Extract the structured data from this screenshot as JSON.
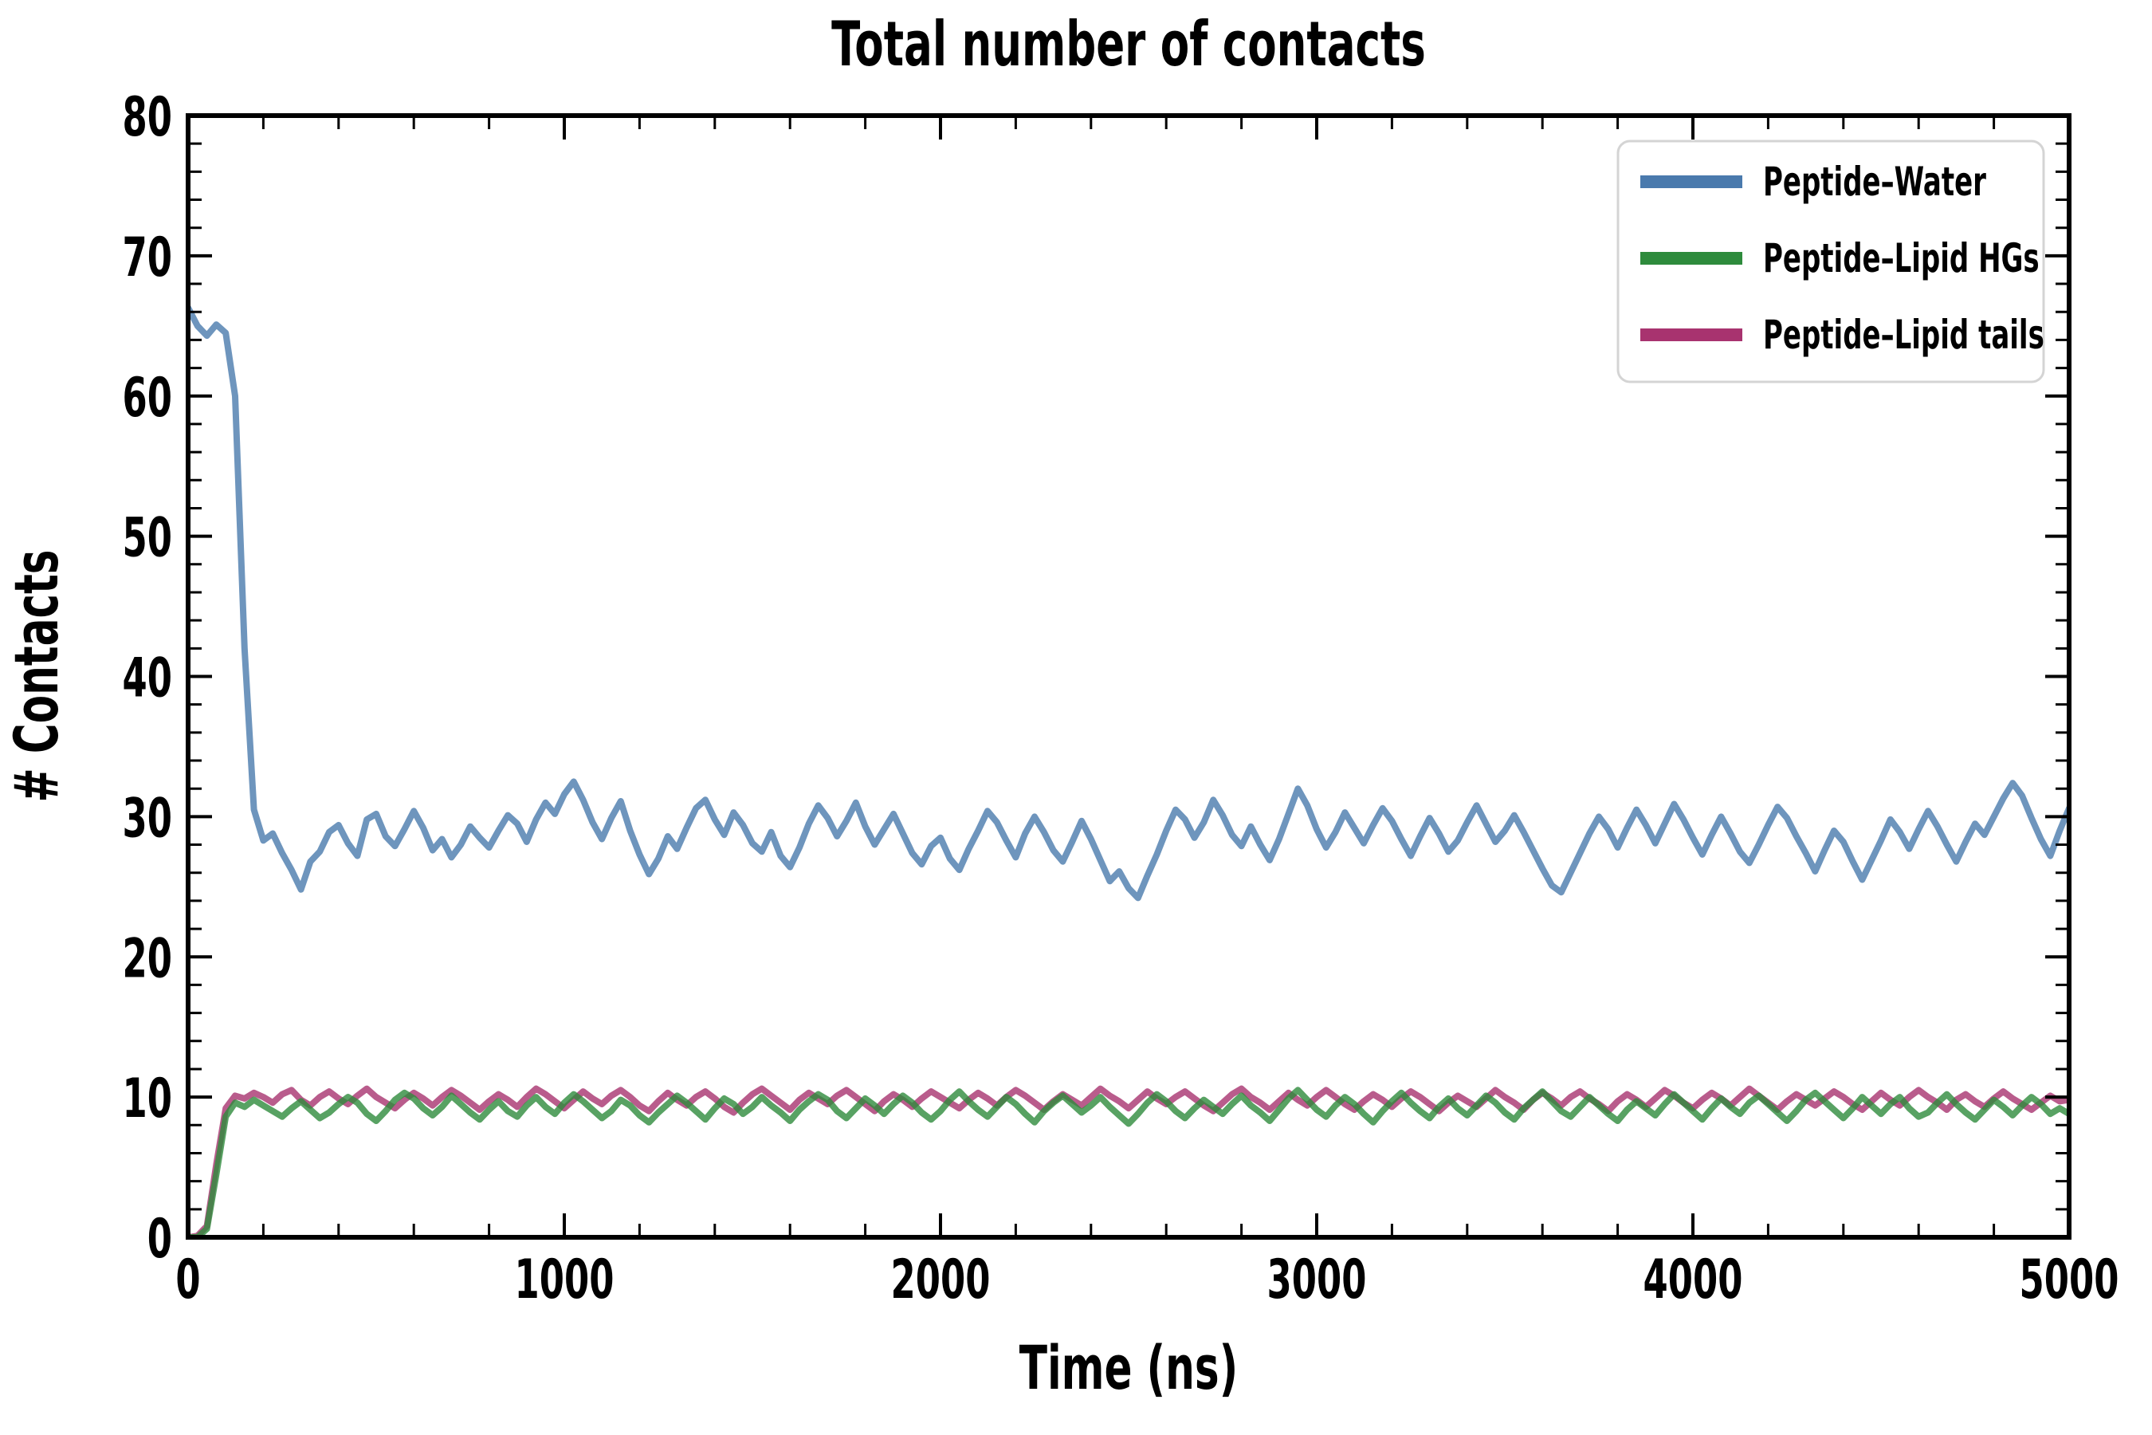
{
  "title": "Total number of contacts",
  "chart_data": {
    "type": "line",
    "title": "Total number of contacts",
    "xlabel": "Time (ns)",
    "ylabel": "# Contacts",
    "xlim": [
      0,
      5000
    ],
    "ylim": [
      0,
      80
    ],
    "xticks_major": [
      0,
      1000,
      2000,
      3000,
      4000,
      5000
    ],
    "yticks_major": [
      0,
      10,
      20,
      30,
      40,
      50,
      60,
      70,
      80
    ],
    "x_minor_step": 200,
    "y_minor_step": 2,
    "grid": false,
    "tick_direction": "in",
    "legend_position": "top-right",
    "line_width": 8,
    "line_opacity": 0.8,
    "x_step_ns": 25,
    "series": [
      {
        "name": "Peptide–Water",
        "color": "#4a7aad",
        "values": [
          66.3,
          65.0,
          64.3,
          65.1,
          64.5,
          60.0,
          42.0,
          30.5,
          28.3,
          28.8,
          27.4,
          26.2,
          24.8,
          26.8,
          27.5,
          28.9,
          29.4,
          28.1,
          27.2,
          29.8,
          30.2,
          28.6,
          27.9,
          29.1,
          30.4,
          29.2,
          27.6,
          28.4,
          27.1,
          28.0,
          29.3,
          28.5,
          27.8,
          29.0,
          30.1,
          29.5,
          28.2,
          29.8,
          31.0,
          30.2,
          31.6,
          32.5,
          31.2,
          29.6,
          28.4,
          29.9,
          31.1,
          29.0,
          27.3,
          25.9,
          27.0,
          28.6,
          27.7,
          29.2,
          30.6,
          31.2,
          29.8,
          28.7,
          30.3,
          29.4,
          28.1,
          27.5,
          28.9,
          27.2,
          26.4,
          27.8,
          29.5,
          30.8,
          29.9,
          28.6,
          29.7,
          31.0,
          29.3,
          28.0,
          29.1,
          30.2,
          28.8,
          27.4,
          26.6,
          27.9,
          28.5,
          27.0,
          26.2,
          27.7,
          29.0,
          30.4,
          29.6,
          28.3,
          27.1,
          28.8,
          30.0,
          28.9,
          27.6,
          26.8,
          28.2,
          29.7,
          28.4,
          26.9,
          25.4,
          26.1,
          24.9,
          24.2,
          25.8,
          27.3,
          29.0,
          30.5,
          29.8,
          28.5,
          29.6,
          31.2,
          30.1,
          28.7,
          27.9,
          29.3,
          28.0,
          26.9,
          28.4,
          30.2,
          32.0,
          30.8,
          29.1,
          27.8,
          28.9,
          30.3,
          29.2,
          28.1,
          29.4,
          30.6,
          29.7,
          28.4,
          27.2,
          28.6,
          29.9,
          28.8,
          27.5,
          28.3,
          29.6,
          30.8,
          29.5,
          28.2,
          29.0,
          30.1,
          28.9,
          27.6,
          26.3,
          25.1,
          24.6,
          26.0,
          27.4,
          28.8,
          30.0,
          29.1,
          27.8,
          29.2,
          30.5,
          29.4,
          28.1,
          29.5,
          30.9,
          29.8,
          28.5,
          27.3,
          28.7,
          30.0,
          28.8,
          27.5,
          26.7,
          28.0,
          29.4,
          30.7,
          29.9,
          28.6,
          27.4,
          26.1,
          27.6,
          29.0,
          28.2,
          26.8,
          25.5,
          26.9,
          28.3,
          29.8,
          28.9,
          27.7,
          29.1,
          30.4,
          29.3,
          28.0,
          26.8,
          28.2,
          29.5,
          28.7,
          30.0,
          31.3,
          32.4,
          31.5,
          29.9,
          28.4,
          27.2,
          29.0,
          30.6
        ]
      },
      {
        "name": "Peptide–Lipid HGs",
        "color": "#2e8b3c",
        "values": [
          0.0,
          0.0,
          0.6,
          4.5,
          8.6,
          9.6,
          9.3,
          9.8,
          9.4,
          9.0,
          8.6,
          9.2,
          9.7,
          9.1,
          8.5,
          8.9,
          9.5,
          10.0,
          9.6,
          8.8,
          8.3,
          9.0,
          9.8,
          10.3,
          9.9,
          9.2,
          8.7,
          9.3,
          10.1,
          9.5,
          8.9,
          8.4,
          9.1,
          9.7,
          9.0,
          8.6,
          9.4,
          10.0,
          9.3,
          8.8,
          9.6,
          10.2,
          9.7,
          9.1,
          8.5,
          9.0,
          9.8,
          9.4,
          8.7,
          8.2,
          8.9,
          9.5,
          10.1,
          9.6,
          9.0,
          8.4,
          9.2,
          9.9,
          9.5,
          8.8,
          9.3,
          10.0,
          9.4,
          8.9,
          8.3,
          9.1,
          9.7,
          10.2,
          9.8,
          9.0,
          8.5,
          9.2,
          9.9,
          9.4,
          8.8,
          9.5,
          10.1,
          9.6,
          8.9,
          8.4,
          9.0,
          9.8,
          10.4,
          9.7,
          9.1,
          8.6,
          9.3,
          10.0,
          9.5,
          8.8,
          8.2,
          9.0,
          9.6,
          10.1,
          9.5,
          8.9,
          9.4,
          10.0,
          9.3,
          8.7,
          8.1,
          8.8,
          9.6,
          10.2,
          9.7,
          9.0,
          8.5,
          9.2,
          9.8,
          9.3,
          8.8,
          9.5,
          10.1,
          9.4,
          8.9,
          8.3,
          9.1,
          9.9,
          10.5,
          9.8,
          9.1,
          8.6,
          9.4,
          10.0,
          9.5,
          8.8,
          8.2,
          9.0,
          9.7,
          10.3,
          9.6,
          9.0,
          8.5,
          9.3,
          9.9,
          9.2,
          8.7,
          9.4,
          10.1,
          9.6,
          8.9,
          8.4,
          9.2,
          9.8,
          10.4,
          9.7,
          9.0,
          8.6,
          9.3,
          10.0,
          9.4,
          8.8,
          8.3,
          9.1,
          9.7,
          9.2,
          8.7,
          9.5,
          10.2,
          9.6,
          9.0,
          8.4,
          9.2,
          9.9,
          9.3,
          8.8,
          9.6,
          10.1,
          9.5,
          8.9,
          8.3,
          9.0,
          9.8,
          10.3,
          9.7,
          9.1,
          8.5,
          9.2,
          10.0,
          9.4,
          8.8,
          9.5,
          10.0,
          9.2,
          8.6,
          8.9,
          9.6,
          10.2,
          9.5,
          8.9,
          8.4,
          9.1,
          9.8,
          9.3,
          8.7,
          9.4,
          10.0,
          9.5,
          8.8,
          9.2,
          8.8
        ]
      },
      {
        "name": "Peptide–Lipid tails",
        "color": "#a8336f",
        "values": [
          0.0,
          0.1,
          0.8,
          5.2,
          9.2,
          10.1,
          9.9,
          10.3,
          10.0,
          9.6,
          10.2,
          10.5,
          9.8,
          9.4,
          10.0,
          10.4,
          9.9,
          9.5,
          10.1,
          10.6,
          10.0,
          9.6,
          9.2,
          9.8,
          10.3,
          9.9,
          9.4,
          10.0,
          10.5,
          10.1,
          9.6,
          9.1,
          9.7,
          10.2,
          9.8,
          9.3,
          10.0,
          10.6,
          10.2,
          9.7,
          9.2,
          9.8,
          10.4,
          9.9,
          9.5,
          10.1,
          10.5,
          10.0,
          9.4,
          9.0,
          9.7,
          10.3,
          9.8,
          9.4,
          10.0,
          10.4,
          9.9,
          9.3,
          8.9,
          9.6,
          10.2,
          10.6,
          10.1,
          9.6,
          9.1,
          9.8,
          10.3,
          9.9,
          9.5,
          10.1,
          10.5,
          10.0,
          9.5,
          9.0,
          9.7,
          10.2,
          9.8,
          9.3,
          9.9,
          10.4,
          10.0,
          9.6,
          9.2,
          9.8,
          10.3,
          9.9,
          9.4,
          10.0,
          10.5,
          10.1,
          9.6,
          9.1,
          9.7,
          10.2,
          9.8,
          9.4,
          10.0,
          10.6,
          10.1,
          9.7,
          9.2,
          9.8,
          10.4,
          9.9,
          9.5,
          10.0,
          10.4,
          9.9,
          9.4,
          9.0,
          9.6,
          10.2,
          10.6,
          10.0,
          9.6,
          9.1,
          9.7,
          10.3,
          9.8,
          9.4,
          10.0,
          10.5,
          10.0,
          9.5,
          9.1,
          9.7,
          10.2,
          9.8,
          9.3,
          9.9,
          10.4,
          10.0,
          9.5,
          9.0,
          9.6,
          10.1,
          9.7,
          9.3,
          9.9,
          10.5,
          10.0,
          9.6,
          9.1,
          9.8,
          10.3,
          9.9,
          9.4,
          10.0,
          10.4,
          9.9,
          9.5,
          9.0,
          9.7,
          10.2,
          9.8,
          9.3,
          9.9,
          10.5,
          10.1,
          9.6,
          9.2,
          9.8,
          10.3,
          9.9,
          9.4,
          10.0,
          10.6,
          10.1,
          9.6,
          9.1,
          9.7,
          10.2,
          9.8,
          9.4,
          9.9,
          10.4,
          10.0,
          9.5,
          9.1,
          9.7,
          10.3,
          9.8,
          9.4,
          10.0,
          10.5,
          10.0,
          9.6,
          9.1,
          9.8,
          10.2,
          9.7,
          9.3,
          9.9,
          10.4,
          9.9,
          9.5,
          9.1,
          9.6,
          10.1,
          9.7,
          9.8
        ]
      }
    ]
  },
  "legend": {
    "border_color": "#d4d4d4",
    "background": "#ffffff"
  },
  "colors": {
    "axis": "#000000",
    "text": "#000000",
    "background": "#ffffff"
  }
}
